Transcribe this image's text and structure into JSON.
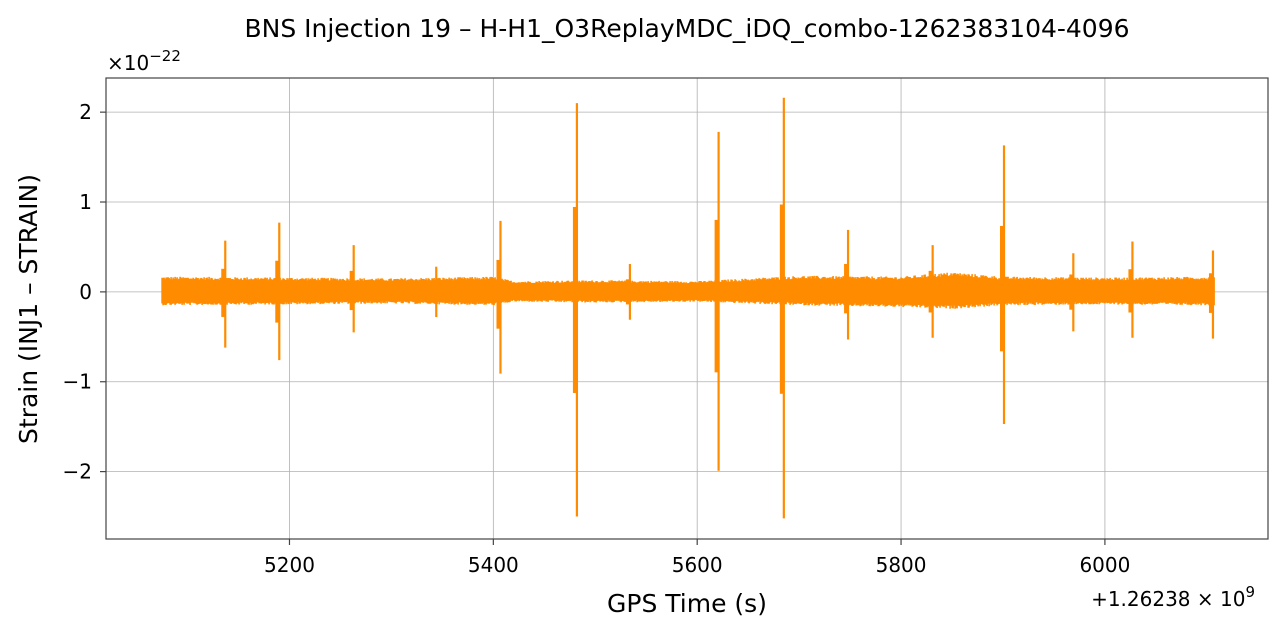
{
  "chart_data": {
    "type": "line",
    "title": "BNS Injection 19 – H-H1_O3ReplayMDC_iDQ_combo-1262383104-4096",
    "xlabel": "GPS Time (s)",
    "ylabel": "Strain (INJ1 – STRAIN)",
    "x_offset_label": "+1.26238 × 10^9",
    "y_multiplier_label": "×10^−22",
    "xlim": [
      5020,
      6160
    ],
    "ylim": [
      -2.75,
      2.38
    ],
    "x_ticks": [
      5200,
      5400,
      5600,
      5800,
      6000
    ],
    "x_tick_labels": [
      "5200",
      "5400",
      "5600",
      "5800",
      "6000"
    ],
    "y_ticks": [
      2,
      1,
      0,
      -1,
      -2
    ],
    "y_tick_labels": [
      "2",
      "1",
      "0",
      "−1",
      "−2"
    ],
    "grid": true,
    "series": [
      {
        "color": "#ff8c00",
        "x_start": 5075,
        "x_end": 6108,
        "noise_band": [
          {
            "x": 5075,
            "upper": 0.17,
            "lower": -0.15
          },
          {
            "x": 5200,
            "upper": 0.16,
            "lower": -0.14
          },
          {
            "x": 5300,
            "upper": 0.15,
            "lower": -0.13
          },
          {
            "x": 5400,
            "upper": 0.17,
            "lower": -0.15
          },
          {
            "x": 5420,
            "upper": 0.12,
            "lower": -0.11
          },
          {
            "x": 5500,
            "upper": 0.13,
            "lower": -0.12
          },
          {
            "x": 5600,
            "upper": 0.12,
            "lower": -0.11
          },
          {
            "x": 5700,
            "upper": 0.18,
            "lower": -0.15
          },
          {
            "x": 5800,
            "upper": 0.17,
            "lower": -0.17
          },
          {
            "x": 5850,
            "upper": 0.22,
            "lower": -0.19
          },
          {
            "x": 5900,
            "upper": 0.17,
            "lower": -0.15
          },
          {
            "x": 6000,
            "upper": 0.16,
            "lower": -0.14
          },
          {
            "x": 6108,
            "upper": 0.17,
            "lower": -0.15
          }
        ],
        "spikes": [
          {
            "x": 5137,
            "max": 0.57,
            "min": -0.62
          },
          {
            "x": 5190,
            "max": 0.77,
            "min": -0.76
          },
          {
            "x": 5263,
            "max": 0.52,
            "min": -0.45
          },
          {
            "x": 5344,
            "max": 0.28,
            "min": -0.28
          },
          {
            "x": 5407,
            "max": 0.79,
            "min": -0.91
          },
          {
            "x": 5482,
            "max": 2.1,
            "min": -2.5
          },
          {
            "x": 5534,
            "max": 0.31,
            "min": -0.31
          },
          {
            "x": 5621,
            "max": 1.78,
            "min": -1.99
          },
          {
            "x": 5685,
            "max": 2.16,
            "min": -2.52
          },
          {
            "x": 5748,
            "max": 0.69,
            "min": -0.53
          },
          {
            "x": 5831,
            "max": 0.52,
            "min": -0.51
          },
          {
            "x": 5901,
            "max": 1.63,
            "min": -1.47
          },
          {
            "x": 5969,
            "max": 0.43,
            "min": -0.44
          },
          {
            "x": 6027,
            "max": 0.56,
            "min": -0.51
          },
          {
            "x": 6106,
            "max": 0.46,
            "min": -0.52
          }
        ]
      }
    ]
  }
}
